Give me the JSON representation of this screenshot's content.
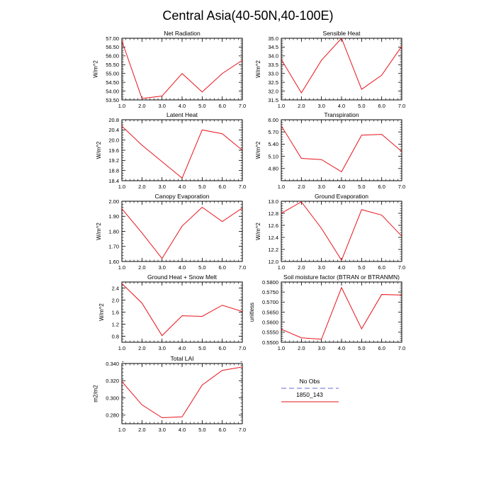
{
  "figure": {
    "title": "Central Asia(40-50N,40-100E)",
    "line_color": "#e8141c",
    "obs_color": "#9a9ae8"
  },
  "legend": {
    "entries": [
      {
        "label": "No Obs",
        "style": "dashed",
        "color": "#9a9ae8"
      },
      {
        "label": "1850_143",
        "style": "solid",
        "color": "#e8141c"
      }
    ]
  },
  "chart_data": [
    {
      "type": "line",
      "title": "Net Radiation",
      "ylabel": "W/m^2",
      "x": [
        1,
        2,
        3,
        4,
        5,
        6,
        7
      ],
      "xlim": [
        1,
        7
      ],
      "xticks": [
        "1.0",
        "2.0",
        "3.0",
        "4.0",
        "5.0",
        "6.0",
        "7.0"
      ],
      "ylim": [
        53.5,
        57.0
      ],
      "yticks": [
        "53.50",
        "54.00",
        "54.50",
        "55.00",
        "55.50",
        "56.00",
        "56.50",
        "57.00"
      ],
      "yminor": 0.1,
      "series": [
        {
          "name": "1850_143",
          "values": [
            56.85,
            53.58,
            53.72,
            55.0,
            53.95,
            55.0,
            55.75
          ]
        }
      ]
    },
    {
      "type": "line",
      "title": "Sensible Heat",
      "ylabel": "W/m^2",
      "x": [
        1,
        2,
        3,
        4,
        5,
        6,
        7
      ],
      "xlim": [
        1,
        7
      ],
      "xticks": [
        "1.0",
        "2.0",
        "3.0",
        "4.0",
        "5.0",
        "6.0",
        "7.0"
      ],
      "ylim": [
        31.5,
        35.0
      ],
      "yticks": [
        "31.5",
        "32.0",
        "32.5",
        "33.0",
        "33.5",
        "34.0",
        "34.5",
        "35.0"
      ],
      "yminor": 0.1,
      "series": [
        {
          "name": "1850_143",
          "values": [
            33.8,
            31.9,
            33.75,
            35.0,
            32.1,
            32.9,
            34.55
          ]
        }
      ]
    },
    {
      "type": "line",
      "title": "Latent Heat",
      "ylabel": "W/m^2",
      "x": [
        1,
        2,
        3,
        4,
        5,
        6,
        7
      ],
      "xlim": [
        1,
        7
      ],
      "xticks": [
        "1.0",
        "2.0",
        "3.0",
        "4.0",
        "5.0",
        "6.0",
        "7.0"
      ],
      "ylim": [
        18.4,
        20.8
      ],
      "yticks": [
        "18.4",
        "18.8",
        "19.2",
        "19.6",
        "20.0",
        "20.4",
        "20.8"
      ],
      "yminor": 0.1,
      "series": [
        {
          "name": "1850_143",
          "values": [
            20.55,
            19.8,
            19.15,
            18.5,
            20.4,
            20.25,
            19.6
          ]
        }
      ]
    },
    {
      "type": "line",
      "title": "Transpiration",
      "ylabel": "W/m^2",
      "x": [
        1,
        2,
        3,
        4,
        5,
        6,
        7
      ],
      "xlim": [
        1,
        7
      ],
      "xticks": [
        "1.0",
        "2.0",
        "3.0",
        "4.0",
        "5.0",
        "6.0",
        "7.0"
      ],
      "ylim": [
        4.5,
        6.0
      ],
      "yticks": [
        "4.80",
        "5.10",
        "5.40",
        "5.70",
        "6.00"
      ],
      "yminor": 0.06,
      "series": [
        {
          "name": "1850_143",
          "values": [
            5.85,
            5.05,
            5.02,
            4.72,
            5.62,
            5.64,
            5.22
          ]
        }
      ]
    },
    {
      "type": "line",
      "title": "Canopy Evaporation",
      "ylabel": "W/m^2",
      "x": [
        1,
        2,
        3,
        4,
        5,
        6,
        7
      ],
      "xlim": [
        1,
        7
      ],
      "xticks": [
        "1.0",
        "2.0",
        "3.0",
        "4.0",
        "5.0",
        "6.0",
        "7.0"
      ],
      "ylim": [
        1.6,
        2.0
      ],
      "yticks": [
        "1.60",
        "1.70",
        "1.80",
        "1.90",
        "2.00"
      ],
      "yminor": 0.02,
      "series": [
        {
          "name": "1850_143",
          "values": [
            1.95,
            1.79,
            1.62,
            1.835,
            1.96,
            1.865,
            1.955
          ]
        }
      ]
    },
    {
      "type": "line",
      "title": "Ground Evaporation",
      "ylabel": "W/m^2",
      "x": [
        1,
        2,
        3,
        4,
        5,
        6,
        7
      ],
      "xlim": [
        1,
        7
      ],
      "xticks": [
        "1.0",
        "2.0",
        "3.0",
        "4.0",
        "5.0",
        "6.0",
        "7.0"
      ],
      "ylim": [
        12.0,
        13.0
      ],
      "yticks": [
        "12.0",
        "12.2",
        "12.4",
        "12.6",
        "12.8",
        "13.0"
      ],
      "yminor": 0.04,
      "series": [
        {
          "name": "1850_143",
          "values": [
            12.8,
            12.99,
            12.55,
            12.02,
            12.86,
            12.77,
            12.42
          ]
        }
      ]
    },
    {
      "type": "line",
      "title": "Ground Heat + Snow Melt",
      "ylabel": "W/m^2",
      "x": [
        1,
        2,
        3,
        4,
        5,
        6,
        7
      ],
      "xlim": [
        1,
        7
      ],
      "xticks": [
        "1.0",
        "2.0",
        "3.0",
        "4.0",
        "5.0",
        "6.0",
        "7.0"
      ],
      "ylim": [
        0.6,
        2.6
      ],
      "yticks": [
        "0.8",
        "1.2",
        "1.6",
        "2.0",
        "2.4"
      ],
      "yminor": 0.1,
      "series": [
        {
          "name": "1850_143",
          "values": [
            2.55,
            1.9,
            0.82,
            1.48,
            1.46,
            1.83,
            1.62
          ]
        }
      ]
    },
    {
      "type": "line",
      "title": "Soil moisture factor (BTRAN or BTRANMN)",
      "ylabel": "unitless",
      "x": [
        1,
        2,
        3,
        4,
        5,
        6,
        7
      ],
      "xlim": [
        1,
        7
      ],
      "xticks": [
        "1.0",
        "2.0",
        "3.0",
        "4.0",
        "5.0",
        "6.0",
        "7.0"
      ],
      "ylim": [
        0.55,
        0.58
      ],
      "yticks": [
        "0.5500",
        "0.5550",
        "0.5600",
        "0.5650",
        "0.5700",
        "0.5750",
        "0.5800"
      ],
      "yminor": 0.001,
      "series": [
        {
          "name": "1850_143",
          "values": [
            0.5565,
            0.5522,
            0.5515,
            0.5772,
            0.5567,
            0.5738,
            0.5735
          ]
        }
      ]
    },
    {
      "type": "line",
      "title": "Total LAI",
      "ylabel": "m2/m2",
      "x": [
        1,
        2,
        3,
        4,
        5,
        6,
        7
      ],
      "xlim": [
        1,
        7
      ],
      "xticks": [
        "1.0",
        "2.0",
        "3.0",
        "4.0",
        "5.0",
        "6.0",
        "7.0"
      ],
      "ylim": [
        0.27,
        0.34
      ],
      "yticks": [
        "0.280",
        "0.300",
        "0.320",
        "0.340"
      ],
      "yminor": 0.004,
      "series": [
        {
          "name": "1850_143",
          "values": [
            0.319,
            0.292,
            0.277,
            0.278,
            0.315,
            0.332,
            0.336
          ]
        }
      ]
    }
  ]
}
